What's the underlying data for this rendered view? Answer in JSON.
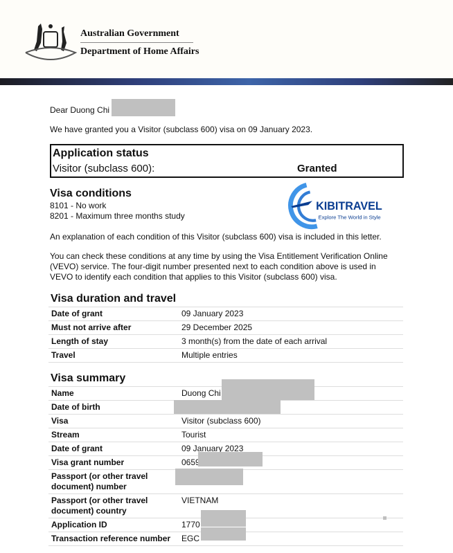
{
  "header": {
    "gov": "Australian Government",
    "dept": "Department of Home Affairs"
  },
  "letter": {
    "greeting": "Dear Duong Chi",
    "intro": "We have granted you a Visitor (subclass 600) visa on 09 January 2023."
  },
  "status": {
    "title": "Application status",
    "label": "Visitor (subclass 600):",
    "value": "Granted"
  },
  "conditions": {
    "title": "Visa conditions",
    "items": [
      "8101 - No work",
      "8201 - Maximum three months study"
    ],
    "explain": "An explanation of each condition of this Visitor (subclass 600) visa is included in this letter.",
    "vevo": [
      "You can check these conditions at any time by using the Visa Entitlement Verification Online",
      "(VEVO) service. The four-digit number presented next to each condition above is used in",
      "VEVO to identify each condition that applies to this Visitor (subclass 600) visa."
    ]
  },
  "watermark": {
    "brand": "KIBITRAVEL",
    "tagline": "Explore The World in Style",
    "colors": [
      "#1e90ff",
      "#0a3d91"
    ]
  },
  "duration": {
    "title": "Visa duration and travel",
    "rows": [
      {
        "label": "Date of grant",
        "value": "09 January 2023"
      },
      {
        "label": "Must not arrive after",
        "value": "29 December 2025"
      },
      {
        "label": "Length of stay",
        "value": "3 month(s) from the date of each arrival"
      },
      {
        "label": "Travel",
        "value": "Multiple entries"
      }
    ]
  },
  "summary": {
    "title": "Visa summary",
    "rows": [
      {
        "label": "Name",
        "value": "Duong Chi"
      },
      {
        "label": "Date of birth",
        "value": ""
      },
      {
        "label": "Visa",
        "value": "Visitor (subclass 600)"
      },
      {
        "label": "Stream",
        "value": "Tourist"
      },
      {
        "label": "Date of grant",
        "value": "09 January 2023"
      },
      {
        "label": "Visa grant number",
        "value": "0659"
      },
      {
        "label": "Passport (or other travel document) number",
        "value": ""
      },
      {
        "label": "Passport (or other travel document) country",
        "value": "VIETNAM"
      },
      {
        "label": "Application ID",
        "value": "1770"
      },
      {
        "label": "Transaction reference number",
        "value": "EGC"
      }
    ]
  }
}
